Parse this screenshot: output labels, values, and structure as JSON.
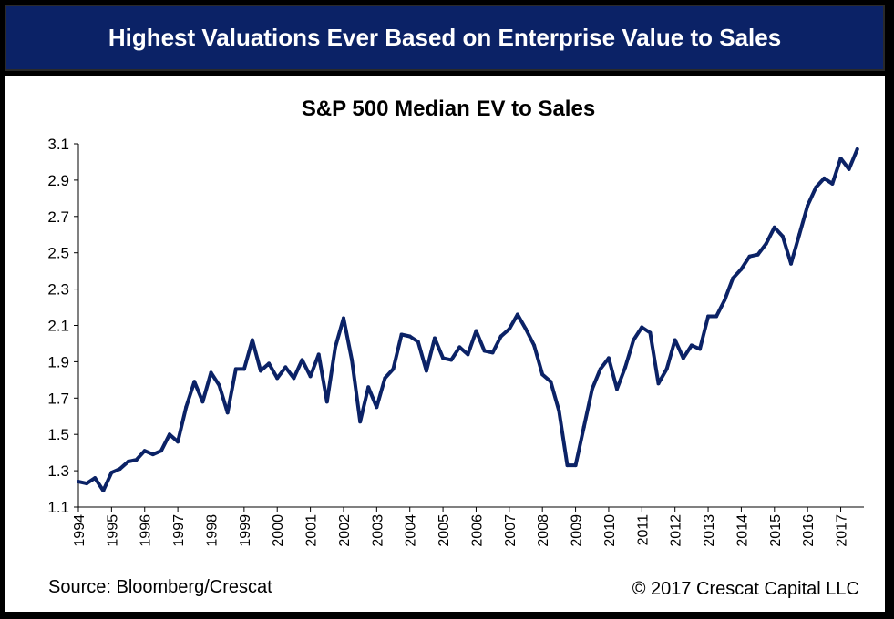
{
  "header": {
    "title": "Highest Valuations Ever Based on Enterprise Value to Sales"
  },
  "footer": {
    "source": "Source: Bloomberg/Crescat",
    "copyright": "© 2017 Crescat Capital LLC"
  },
  "colors": {
    "header_bg": "#0b2266",
    "line": "#0b2266",
    "text": "#000000"
  },
  "chart_data": {
    "type": "line",
    "title": "S&P 500 Median EV to Sales",
    "xlabel": "",
    "ylabel": "",
    "grid": false,
    "legend": "none",
    "xlim": [
      1994,
      2017.7
    ],
    "ylim": [
      1.1,
      3.1
    ],
    "y_ticks": [
      "1.1",
      "1.3",
      "1.5",
      "1.7",
      "1.9",
      "2.1",
      "2.3",
      "2.5",
      "2.7",
      "2.9",
      "3.1"
    ],
    "x_ticks": [
      "1994",
      "1995",
      "1996",
      "1997",
      "1998",
      "1999",
      "2000",
      "2001",
      "2002",
      "2003",
      "2004",
      "2005",
      "2006",
      "2007",
      "2008",
      "2009",
      "2010",
      "2011",
      "2012",
      "2013",
      "2014",
      "2015",
      "2016",
      "2017"
    ],
    "series": [
      {
        "x": [
          1994.0,
          1994.25,
          1994.5,
          1994.75,
          1995.0,
          1995.25,
          1995.5,
          1995.75,
          1996.0,
          1996.25,
          1996.5,
          1996.75,
          1997.0,
          1997.25,
          1997.5,
          1997.75,
          1998.0,
          1998.25,
          1998.5,
          1998.75,
          1999.0,
          1999.25,
          1999.5,
          1999.75,
          2000.0,
          2000.25,
          2000.5,
          2000.75,
          2001.0,
          2001.25,
          2001.5,
          2001.75,
          2002.0,
          2002.25,
          2002.5,
          2002.75,
          2003.0,
          2003.25,
          2003.5,
          2003.75,
          2004.0,
          2004.25,
          2004.5,
          2004.75,
          2005.0,
          2005.25,
          2005.5,
          2005.75,
          2006.0,
          2006.25,
          2006.5,
          2006.75,
          2007.0,
          2007.25,
          2007.5,
          2007.75,
          2008.0,
          2008.25,
          2008.5,
          2008.75,
          2009.0,
          2009.25,
          2009.5,
          2009.75,
          2010.0,
          2010.25,
          2010.5,
          2010.75,
          2011.0,
          2011.25,
          2011.5,
          2011.75,
          2012.0,
          2012.25,
          2012.5,
          2012.75,
          2013.0,
          2013.25,
          2013.5,
          2013.75,
          2014.0,
          2014.25,
          2014.5,
          2014.75,
          2015.0,
          2015.25,
          2015.5,
          2015.75,
          2016.0,
          2016.25,
          2016.5,
          2016.75,
          2017.0,
          2017.25,
          2017.5
        ],
        "values": [
          1.24,
          1.23,
          1.26,
          1.19,
          1.29,
          1.31,
          1.35,
          1.36,
          1.41,
          1.39,
          1.41,
          1.5,
          1.46,
          1.65,
          1.79,
          1.68,
          1.84,
          1.77,
          1.62,
          1.86,
          1.86,
          2.02,
          1.85,
          1.89,
          1.81,
          1.87,
          1.81,
          1.91,
          1.82,
          1.94,
          1.68,
          1.98,
          2.14,
          1.91,
          1.57,
          1.76,
          1.65,
          1.81,
          1.86,
          2.05,
          2.04,
          2.01,
          1.85,
          2.03,
          1.92,
          1.91,
          1.98,
          1.94,
          2.07,
          1.96,
          1.95,
          2.04,
          2.08,
          2.16,
          2.08,
          1.99,
          1.83,
          1.79,
          1.63,
          1.33,
          1.33,
          1.54,
          1.75,
          1.86,
          1.92,
          1.75,
          1.87,
          2.02,
          2.09,
          2.06,
          1.78,
          1.86,
          2.02,
          1.92,
          1.99,
          1.97,
          2.15,
          2.15,
          2.24,
          2.36,
          2.41,
          2.48,
          2.49,
          2.55,
          2.64,
          2.59,
          2.44,
          2.6,
          2.76,
          2.86,
          2.91,
          2.88,
          3.02,
          2.96,
          3.07
        ]
      }
    ]
  }
}
